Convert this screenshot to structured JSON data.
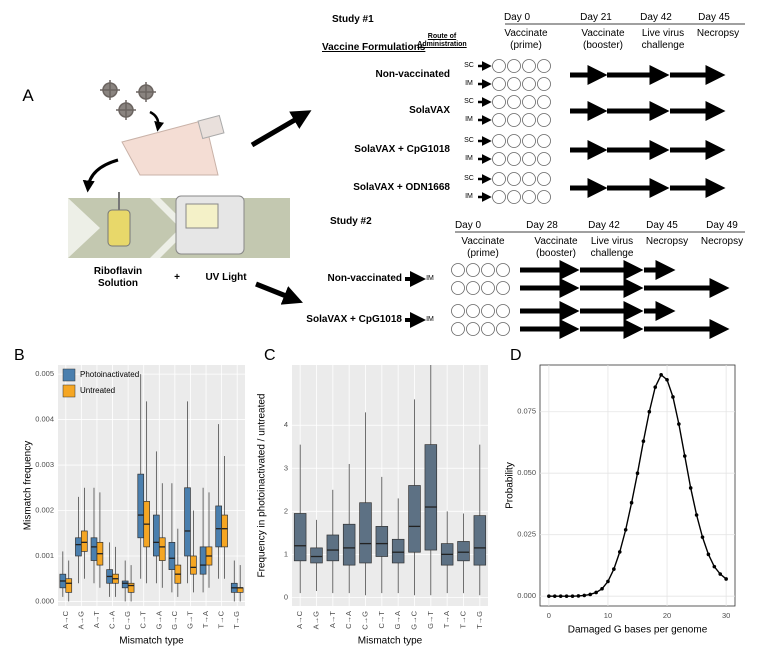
{
  "diagram": {
    "panel": "A",
    "illustration": {
      "solution": "Riboflavin Solution",
      "plus": "+",
      "light": "UV Light"
    },
    "study1": {
      "title": "Study #1",
      "formulations_heading": "Vaccine Formulations",
      "route_heading": "Route of Administration",
      "days": [
        "Day 0",
        "Day 21",
        "Day 42",
        "Day 45"
      ],
      "phases": [
        "Vaccinate (prime)",
        "Vaccinate (booster)",
        "Live virus challenge",
        "Necropsy"
      ],
      "groups": [
        {
          "label": "Non-vaccinated",
          "routes": [
            "SC",
            "IM"
          ]
        },
        {
          "label": "SolaVAX",
          "routes": [
            "SC",
            "IM"
          ]
        },
        {
          "label": "SolaVAX + CpG1018",
          "routes": [
            "SC",
            "IM"
          ]
        },
        {
          "label": "SolaVAX + ODN1668",
          "routes": [
            "SC",
            "IM"
          ]
        }
      ]
    },
    "study2": {
      "title": "Study #2",
      "days": [
        "Day 0",
        "Day 28",
        "Day 42",
        "Day 45",
        "Day 49"
      ],
      "phases": [
        "Vaccinate (prime)",
        "Vaccinate (booster)",
        "Live virus challenge",
        "Necropsy",
        "Necropsy"
      ],
      "groups": [
        {
          "label": "Non-vaccinated",
          "routes": [
            "IM"
          ]
        },
        {
          "label": "SolaVAX + CpG1018",
          "routes": [
            "IM"
          ]
        }
      ]
    }
  },
  "chart_data": [
    {
      "type": "box",
      "panel": "B",
      "xlabel": "Mismatch type",
      "ylabel": "Mismatch frequency",
      "categories": [
        "A→C",
        "A→G",
        "A→T",
        "C→A",
        "C→G",
        "C→T",
        "G→A",
        "G→C",
        "G→T",
        "T→A",
        "T→C",
        "T→G"
      ],
      "ylim": [
        -0.0001,
        0.0052
      ],
      "yticks": [
        {
          "value": 0,
          "label": "0.000"
        },
        0.001,
        0.002,
        0.003,
        0.004,
        0.005
      ],
      "grid": true,
      "background": "#ebebeb",
      "legend": "top-left",
      "series": [
        {
          "name": "Photoinactivated",
          "color": "#4a7fae",
          "values": [
            [
              0.0001,
              0.0003,
              0.00045,
              0.0006,
              0.0011
            ],
            [
              0.0004,
              0.001,
              0.00125,
              0.0014,
              0.0023
            ],
            [
              0.0004,
              0.0009,
              0.0012,
              0.0014,
              0.0025
            ],
            [
              0.0001,
              0.0004,
              0.00055,
              0.0007,
              0.0013
            ],
            [
              0,
              0.0003,
              0.0004,
              0.00045,
              0.0009
            ],
            [
              0.0005,
              0.0014,
              0.0019,
              0.0028,
              0.005
            ],
            [
              0.0004,
              0.001,
              0.0013,
              0.0019,
              0.0033
            ],
            [
              0.0002,
              0.0007,
              0.00095,
              0.0013,
              0.0026
            ],
            [
              0.0004,
              0.001,
              0.00155,
              0.0025,
              0.0044
            ],
            [
              0.0002,
              0.0006,
              0.0008,
              0.0012,
              0.0025
            ],
            [
              0.0005,
              0.0012,
              0.0016,
              0.0021,
              0.0039
            ],
            [
              0,
              0.0002,
              0.0003,
              0.0004,
              0.0009
            ]
          ]
        },
        {
          "name": "Untreated",
          "color": "#f5a623",
          "values": [
            [
              0,
              0.0002,
              0.0004,
              0.0005,
              0.0009
            ],
            [
              0.0005,
              0.0011,
              0.0013,
              0.00155,
              0.0025
            ],
            [
              0.0003,
              0.0008,
              0.00105,
              0.0013,
              0.0024
            ],
            [
              0.0001,
              0.0004,
              0.0005,
              0.0006,
              0.0012
            ],
            [
              0,
              0.0002,
              0.00035,
              0.0004,
              0.0008
            ],
            [
              0.0004,
              0.0012,
              0.0017,
              0.0022,
              0.0044
            ],
            [
              0.0003,
              0.0009,
              0.0012,
              0.0014,
              0.0026
            ],
            [
              0.0001,
              0.0004,
              0.0006,
              0.0008,
              0.0016
            ],
            [
              0.0002,
              0.0006,
              0.00075,
              0.001,
              0.002
            ],
            [
              0.0003,
              0.0008,
              0.001,
              0.0012,
              0.0024
            ],
            [
              0.0005,
              0.0012,
              0.0016,
              0.0019,
              0.0032
            ],
            [
              0,
              0.0002,
              0.0003,
              0.0003,
              0.0008
            ]
          ]
        }
      ]
    },
    {
      "type": "box",
      "panel": "C",
      "xlabel": "Mismatch type",
      "ylabel": "Frequency in photoinactivated / untreated",
      "categories": [
        "A→C",
        "A→G",
        "A→T",
        "C→A",
        "C→G",
        "C→T",
        "G→A",
        "G→C",
        "G→T",
        "T→A",
        "T→C",
        "T→G"
      ],
      "ylim": [
        -0.2,
        5.4
      ],
      "yticks": [
        0,
        1,
        2,
        3,
        4
      ],
      "grid": true,
      "background": "#ebebeb",
      "series": [
        {
          "color": "#5d7184",
          "values": [
            [
              0.1,
              0.85,
              1.2,
              1.95,
              3.55
            ],
            [
              0.15,
              0.8,
              0.95,
              1.15,
              1.8
            ],
            [
              0.1,
              0.85,
              1.1,
              1.45,
              2.5
            ],
            [
              0.1,
              0.75,
              1.15,
              1.7,
              3.1
            ],
            [
              0.05,
              0.8,
              1.25,
              2.2,
              4.3
            ],
            [
              0.1,
              0.95,
              1.25,
              1.65,
              2.8
            ],
            [
              0.1,
              0.8,
              1.05,
              1.35,
              2.3
            ],
            [
              0.05,
              1.05,
              1.65,
              2.6,
              4.6
            ],
            [
              0.05,
              1.1,
              2.1,
              3.55,
              5.4
            ],
            [
              0.1,
              0.75,
              1,
              1.25,
              2
            ],
            [
              0.1,
              0.85,
              1.05,
              1.3,
              1.95
            ],
            [
              0.05,
              0.75,
              1.15,
              1.9,
              3.55
            ]
          ]
        }
      ]
    },
    {
      "type": "line",
      "panel": "D",
      "xlabel": "Damaged G bases per genome",
      "ylabel": "Probability",
      "x": [
        0,
        1,
        2,
        3,
        4,
        5,
        6,
        7,
        8,
        9,
        10,
        11,
        12,
        13,
        14,
        15,
        16,
        17,
        18,
        19,
        20,
        21,
        22,
        23,
        24,
        25,
        26,
        27,
        28,
        29,
        30
      ],
      "values": [
        0,
        0,
        0,
        0,
        0,
        0.0001,
        0.0003,
        0.0007,
        0.0015,
        0.003,
        0.006,
        0.011,
        0.018,
        0.027,
        0.038,
        0.05,
        0.063,
        0.075,
        0.085,
        0.09,
        0.088,
        0.081,
        0.07,
        0.057,
        0.044,
        0.033,
        0.024,
        0.017,
        0.012,
        0.009,
        0.007
      ],
      "color": "#000000",
      "xlim": [
        -1.5,
        31.5
      ],
      "ylim": [
        -0.004,
        0.094
      ],
      "xticks": [
        0,
        10,
        20,
        30
      ],
      "yticks": [
        {
          "value": 0,
          "label": "0.000"
        },
        0.025,
        {
          "value": 0.05,
          "label": "0.050"
        },
        0.075
      ],
      "grid": true,
      "background": "#ffffff"
    }
  ]
}
